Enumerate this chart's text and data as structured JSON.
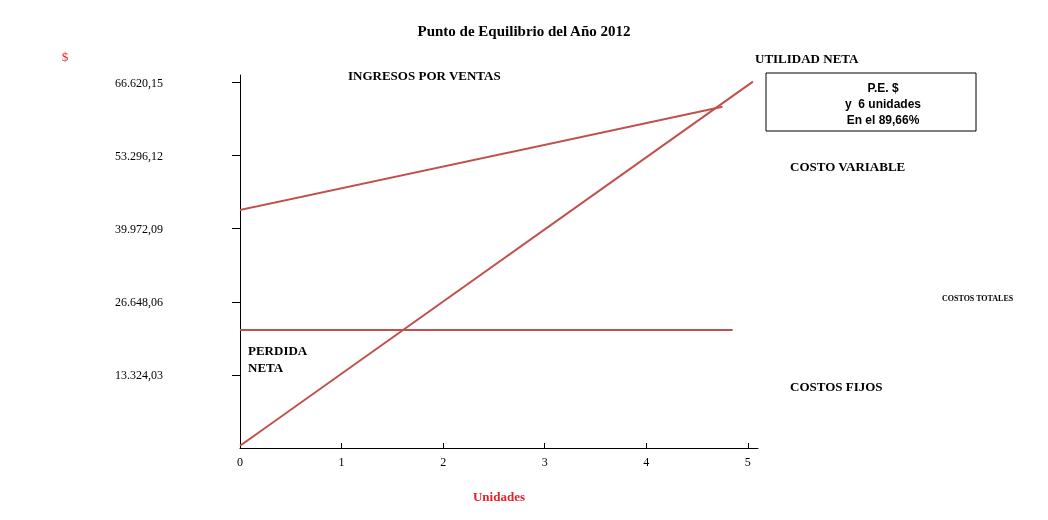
{
  "chart_data": {
    "type": "line",
    "title": "Punto de Equilibrio del Año 2012",
    "xlabel": "Unidades",
    "ylabel": "$",
    "xlim": [
      0,
      5.1
    ],
    "xticks": [
      0,
      1,
      2,
      3,
      4,
      5
    ],
    "ylim": [
      0,
      68000
    ],
    "yticks": [
      {
        "value": 13324.03,
        "label": "13.324,03"
      },
      {
        "value": 26648.06,
        "label": "26.648,06"
      },
      {
        "value": 39972.09,
        "label": "39.972,09"
      },
      {
        "value": 53296.12,
        "label": "53.296,12"
      },
      {
        "value": 66620.15,
        "label": "66.620,15"
      }
    ],
    "series": [
      {
        "color": "#c0504d",
        "x": [
          0,
          5.05
        ],
        "values": [
          400,
          66800
        ]
      },
      {
        "color": "#c0504d",
        "x": [
          0,
          4.75
        ],
        "values": [
          43400,
          62200
        ]
      },
      {
        "color": "#c0504d",
        "x": [
          0,
          4.85
        ],
        "values": [
          21500,
          21500
        ]
      }
    ],
    "annotations": [
      "INGRESOS POR VENTAS",
      "UTILIDAD NETA",
      "P.E. $\ny  6 unidades\nEn el 89,66%",
      "COSTO VARIABLE",
      "COSTOS TOTALES",
      "PERDIDA\nNETA",
      "COSTOS FIJOS"
    ],
    "grid": false,
    "marker": "none",
    "line_style": "solid"
  }
}
